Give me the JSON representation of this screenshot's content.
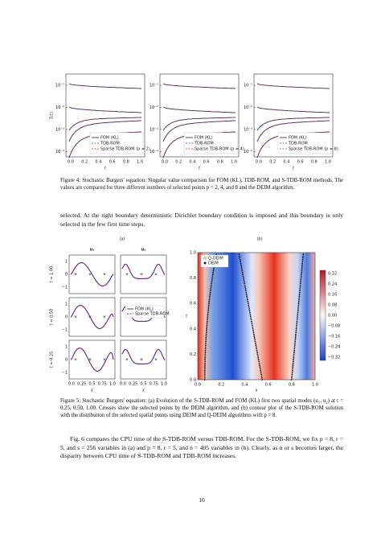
{
  "figure4": {
    "ylabel": "Σ(t)",
    "xlabel": "t",
    "xticks": [
      "0.0",
      "0.2",
      "0.4",
      "0.6",
      "0.8",
      "1.0"
    ],
    "yticks": [
      "10⁻¹",
      "10⁻²",
      "10⁻³",
      "10⁻⁴"
    ],
    "legend": [
      "FOM (KL)",
      "TDB-ROM"
    ],
    "sparse": [
      "Sparse TDB-ROM (p = 2)",
      "Sparse TDB-ROM (p = 4)",
      "Sparse TDB-ROM (p = 8)"
    ],
    "caption": "Figure 4: Stochastic Burgers' equation: Singular value comparison for FOM (KL), TDB-ROM, and S-TDB-ROM methods. The values are compared for three different numbers of selected points p = 2, 4, and 8 and the DEIM algorithm."
  },
  "paragraph1": "selected. At the right boundary deterministic Dirichlet boundary condition is imposed and this boundary is only selected in the few first time steps.",
  "figure5": {
    "panel_a": "(a)",
    "panel_b": "(b)",
    "col_titles": [
      "u₁",
      "u₂"
    ],
    "row_labels": [
      "t = 1.00",
      "t = 0.50",
      "t = 0.25"
    ],
    "yticks": [
      "1",
      "0",
      "−1"
    ],
    "xticks": [
      "0.0",
      "0.25",
      "0.5",
      "0.75",
      "1.0"
    ],
    "xlabel": "x",
    "legend": [
      "FOM (KL)",
      "Sparse TDB-ROM"
    ],
    "contour_legend": [
      "Q-DEIM",
      "DEIM"
    ],
    "contour_ylabel": "t",
    "contour_xlabel": "x",
    "contour_xticks": [
      "0.0",
      "0.2",
      "0.4",
      "0.6",
      "0.8",
      "1.0"
    ],
    "contour_yticks": [
      "0.0",
      "0.2",
      "0.4",
      "0.6",
      "0.8",
      "1.0"
    ],
    "colorbar_ticks": [
      "0.32",
      "0.24",
      "0.16",
      "0.08",
      "0.00",
      "−0.08",
      "−0.16",
      "−0.24",
      "−0.32"
    ],
    "caption": "Figure 5: Stochastic Burgers' equation: (a) Evolution of the S-TDB-ROM and FOM (KL) first two spatial modes (u₁, u₂) at t = 0.25, 0.50, 1.00. Crosses show the selected points by the DEIM algorithm, and (b) contour plot of the S-TDB-ROM solution with the distribution of the selected spatial points using DEIM and Q-DEIM algorithms with p = 8."
  },
  "paragraph2": "Fig. 6 compares the CPU time of the S-TDB-ROM versus TDB-ROM. For the S-TDB-ROM, we fix p = 8, r = 5, and s = 256 variables in (a) and p = 8, r = 5, and n = 405 variables in (b). Clearly, as n or s becomes larger, the disparity between CPU time of S-TDB-ROM and TDB-ROM increases.",
  "page_number": "16"
}
